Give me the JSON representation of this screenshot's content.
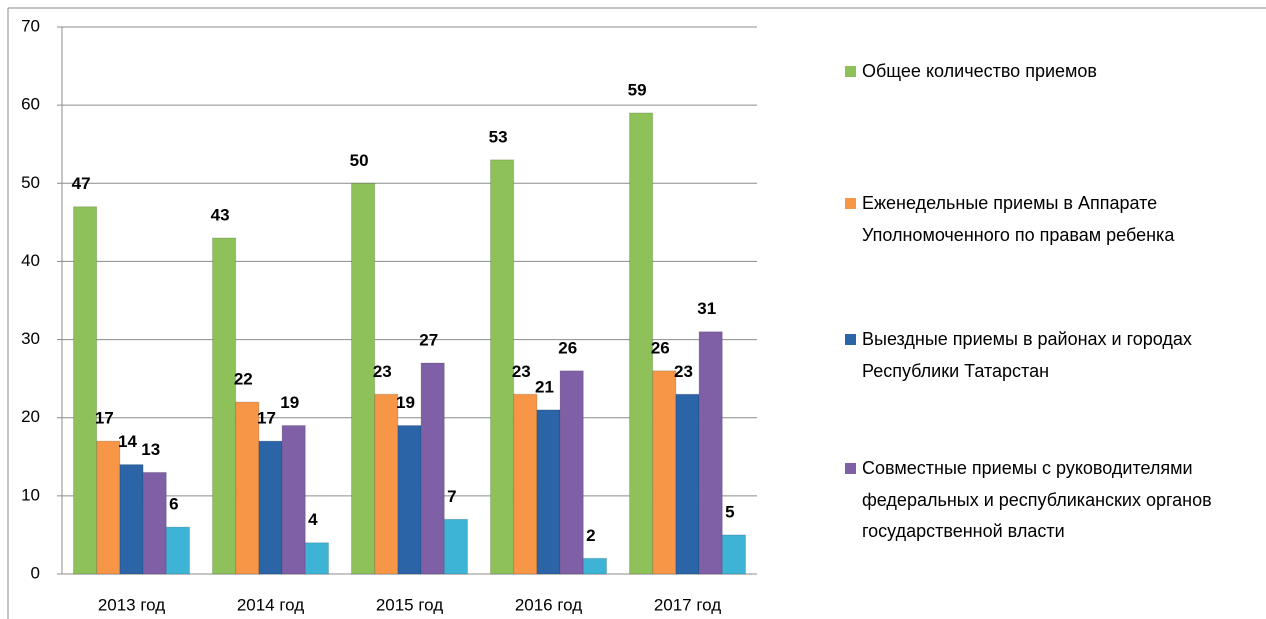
{
  "chart_data": {
    "type": "bar",
    "categories": [
      "2013 год",
      "2014 год",
      "2015 год",
      "2016 год",
      "2017 год"
    ],
    "series": [
      {
        "name": "Общее количество приемов",
        "color": "#8fc15a",
        "values": [
          47,
          43,
          50,
          53,
          59
        ]
      },
      {
        "name": "Еженедельные приемы в Аппарате Уполномоченного по правам ребенка",
        "color": "#f79646",
        "values": [
          17,
          22,
          23,
          23,
          26
        ]
      },
      {
        "name": "Выездные приемы в районах и городах Республики Татарстан",
        "color": "#2c64a8",
        "values": [
          14,
          17,
          19,
          21,
          23
        ]
      },
      {
        "name": "Совместные приемы с руководителями федеральных и республиканских органов государственной власти",
        "color": "#7f5fa6",
        "values": [
          13,
          19,
          27,
          26,
          31
        ]
      },
      {
        "color": "#3db4d6",
        "values": [
          6,
          4,
          7,
          2,
          5
        ]
      }
    ],
    "ylim": [
      0,
      70
    ],
    "yticks": [
      0,
      10,
      20,
      30,
      40,
      50,
      60,
      70
    ],
    "grid": true,
    "legend": "right"
  }
}
